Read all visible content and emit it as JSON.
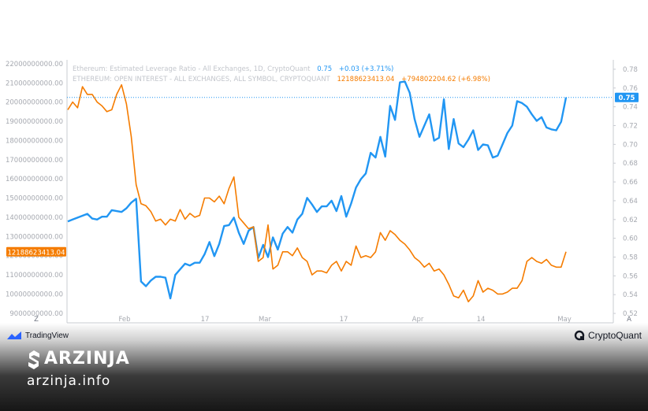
{
  "chart_data": {
    "type": "line",
    "x_ticks": [
      "Feb",
      "17",
      "Mar",
      "17",
      "Apr",
      "14",
      "May"
    ],
    "left_axis": {
      "ticks": [
        "22000000000.00",
        "21000000000.00",
        "20000000000.00",
        "19000000000.00",
        "18000000000.00",
        "17000000000.00",
        "16000000000.00",
        "15000000000.00",
        "14000000000.00",
        "13000000000.00",
        "12000000000.00",
        "11000000000.00",
        "10000000000.00",
        "9000000000.00"
      ],
      "range": [
        8500000000,
        22200000000
      ]
    },
    "right_axis": {
      "ticks": [
        "0.78",
        "0.76",
        "0.74",
        "0.72",
        "0.70",
        "0.68",
        "0.66",
        "0.64",
        "0.62",
        "0.60",
        "0.58",
        "0.56",
        "0.54",
        "0.52"
      ],
      "range": [
        0.51,
        0.79
      ]
    },
    "series": [
      {
        "name": "Ethereum: Estimated Leverage Ratio - All Exchanges, 1D, CryptoQuant",
        "axis": "right",
        "color": "#2196f3",
        "last_value_label": "0.75",
        "values": [
          0.618,
          0.62,
          0.622,
          0.624,
          0.626,
          0.621,
          0.62,
          0.623,
          0.623,
          0.63,
          0.629,
          0.628,
          0.632,
          0.638,
          0.642,
          0.554,
          0.549,
          0.555,
          0.559,
          0.559,
          0.558,
          0.536,
          0.561,
          0.567,
          0.573,
          0.571,
          0.574,
          0.574,
          0.583,
          0.596,
          0.581,
          0.594,
          0.613,
          0.614,
          0.622,
          0.606,
          0.594,
          0.608,
          0.612,
          0.579,
          0.593,
          0.58,
          0.601,
          0.588,
          0.605,
          0.612,
          0.606,
          0.62,
          0.626,
          0.643,
          0.636,
          0.628,
          0.634,
          0.634,
          0.64,
          0.629,
          0.645,
          0.623,
          0.637,
          0.654,
          0.663,
          0.669,
          0.691,
          0.686,
          0.708,
          0.687,
          0.741,
          0.726,
          0.766,
          0.767,
          0.755,
          0.727,
          0.708,
          0.72,
          0.732,
          0.704,
          0.707,
          0.748,
          0.695,
          0.727,
          0.701,
          0.697,
          0.705,
          0.715,
          0.694,
          0.7,
          0.699,
          0.686,
          0.688,
          0.7,
          0.712,
          0.72,
          0.746,
          0.744,
          0.74,
          0.732,
          0.725,
          0.729,
          0.718,
          0.716,
          0.715,
          0.724,
          0.75
        ]
      },
      {
        "name": "ETHEREUM: OPEN INTEREST - ALL EXCHANGES, ALL SYMBOL, CRYPTOQUANT",
        "axis": "left",
        "color": "#f57c00",
        "last_value_label": "12188623413.04",
        "values": [
          19600000000,
          20000000000,
          19700000000,
          20800000000,
          20400000000,
          20400000000,
          20000000000,
          19800000000,
          19500000000,
          19600000000,
          20400000000,
          20900000000,
          19900000000,
          18200000000,
          15700000000,
          14700000000,
          14600000000,
          14300000000,
          13800000000,
          13900000000,
          13600000000,
          13900000000,
          13800000000,
          14400000000,
          13900000000,
          14200000000,
          14000000000,
          14100000000,
          15000000000,
          15000000000,
          14800000000,
          15100000000,
          14700000000,
          15500000000,
          16100000000,
          14000000000,
          13700000000,
          13400000000,
          13500000000,
          11700000000,
          11900000000,
          13600000000,
          11300000000,
          11500000000,
          12200000000,
          12200000000,
          12000000000,
          12400000000,
          11900000000,
          11700000000,
          11000000000,
          11200000000,
          11200000000,
          11100000000,
          11500000000,
          11700000000,
          11200000000,
          11700000000,
          11500000000,
          12500000000,
          11900000000,
          12000000000,
          11900000000,
          12200000000,
          13200000000,
          12800000000,
          13300000000,
          13100000000,
          12800000000,
          12600000000,
          12300000000,
          11900000000,
          11700000000,
          11400000000,
          11600000000,
          11200000000,
          11300000000,
          11000000000,
          10500000000,
          9900000000,
          9800000000,
          10200000000,
          9600000000,
          9900000000,
          10700000000,
          10100000000,
          10300000000,
          10200000000,
          10000000000,
          10000000000,
          10100000000,
          10300000000,
          10300000000,
          10700000000,
          11700000000,
          11900000000,
          11700000000,
          11600000000,
          11800000000,
          11500000000,
          11400000000,
          11400000000,
          12200000000
        ]
      }
    ],
    "grid": false
  },
  "legend": {
    "leverage": {
      "title": "Ethereum: Estimated Leverage Ratio - All Exchanges, 1D, CryptoQuant",
      "value": "0.75",
      "change": "+0.03 (+3.71%)"
    },
    "open_interest": {
      "title": "ETHEREUM: OPEN INTEREST - ALL EXCHANGES, ALL SYMBOL, CRYPTOQUANT",
      "value": "12188623413.04",
      "change": "+794802204.62 (+6.98%)"
    }
  },
  "axis_buttons": {
    "left": "Z",
    "right": "A"
  },
  "colors": {
    "leverage": "#2196f3",
    "open_interest": "#f57c00"
  },
  "branding": {
    "tradingview": "TradingView",
    "cryptoquant": "CryptoQuant",
    "site_name": "ARZINJA",
    "site_url": "arzinja.info"
  }
}
